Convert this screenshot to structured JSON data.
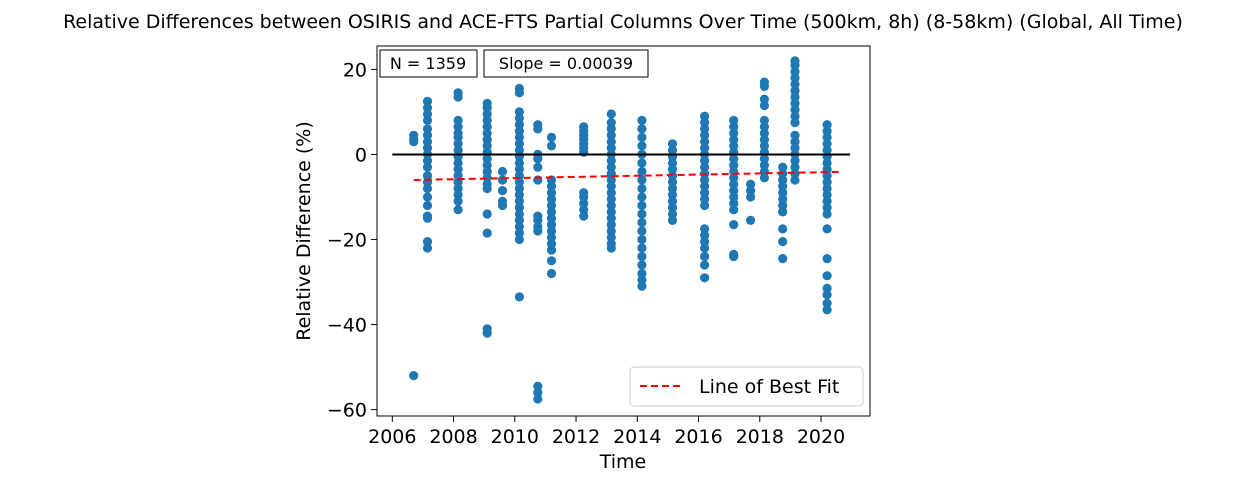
{
  "chart_data": {
    "type": "scatter",
    "title": "Relative Differences between OSIRIS and ACE-FTS Partial Columns Over Time (500km, 8h) (8-58km) (Global, All Time)",
    "xlabel": "Time",
    "ylabel": "Relative Difference (%)",
    "xlim": [
      2005.5,
      2021.6
    ],
    "ylim": [
      -61.5,
      25.5
    ],
    "xticks": [
      2006,
      2008,
      2010,
      2012,
      2014,
      2016,
      2018,
      2020
    ],
    "yticks": [
      20,
      0,
      -20,
      -40,
      -60
    ],
    "ytick_labels": [
      "20",
      "0",
      "−20",
      "−40",
      "−60"
    ],
    "annotations": {
      "n": "N = 1359",
      "slope": "Slope = 0.00039"
    },
    "legend": {
      "label": "Line of Best Fit",
      "placement": "lower-right"
    },
    "grid": false,
    "zero_line": {
      "y": 0,
      "x_start": 2006.0,
      "x_end": 2020.95,
      "color": "#000000"
    },
    "best_fit": {
      "slope": 0.00039,
      "x_start": 2006.7,
      "x_end": 2020.6,
      "y_start": -6.0,
      "y_end": -4.1,
      "color": "#ff0000"
    },
    "point_color": "#1f77b4",
    "clusters": [
      {
        "x": 2006.7,
        "values": [
          4.5,
          3.5,
          3.0,
          -52.0
        ]
      },
      {
        "x": 2007.15,
        "values": [
          12.5,
          11,
          9.5,
          8,
          6,
          4.5,
          3,
          1.5,
          0,
          -1.5,
          -3,
          -5,
          -6.5,
          -8,
          -10,
          -12,
          -14.5,
          -15,
          -20.5,
          -22
        ]
      },
      {
        "x": 2008.15,
        "values": [
          14.5,
          13.5,
          8,
          6.5,
          5,
          4,
          2.5,
          1,
          -0.5,
          -2,
          -3.5,
          -5,
          -6.5,
          -8,
          -9.5,
          -11,
          -13
        ]
      },
      {
        "x": 2009.1,
        "values": [
          12,
          11,
          9.5,
          8,
          6.5,
          5,
          3.5,
          2,
          0.5,
          -1,
          -2.5,
          -4,
          -5.5,
          -7,
          -8,
          -14,
          -18.5,
          -41,
          -42
        ]
      },
      {
        "x": 2009.6,
        "values": [
          -4,
          -6,
          -8.5,
          -11,
          -12
        ]
      },
      {
        "x": 2010.15,
        "values": [
          15.5,
          14.5,
          10,
          8.5,
          7,
          5.5,
          4,
          2.5,
          1,
          -0.5,
          -2,
          -3.5,
          -5,
          -6.5,
          -8,
          -9.5,
          -11,
          -12.5,
          -14,
          -15.5,
          -17,
          -18.5,
          -20,
          -33.5
        ]
      },
      {
        "x": 2010.75,
        "values": [
          7,
          6,
          0,
          -1,
          -3,
          -6,
          -14.5,
          -15.5,
          -17,
          -18,
          -54.5,
          -56,
          -57.5
        ]
      },
      {
        "x": 2011.2,
        "values": [
          4,
          2,
          -6,
          -7.5,
          -9,
          -10.5,
          -12,
          -13.5,
          -15,
          -16.5,
          -18,
          -19.5,
          -21,
          -22.5,
          -25,
          -28
        ]
      },
      {
        "x": 2012.25,
        "values": [
          6.5,
          5.5,
          4.5,
          3.5,
          2.5,
          1.5,
          0.5,
          -9,
          -10,
          -11.5,
          -13,
          -14.5
        ]
      },
      {
        "x": 2013.15,
        "values": [
          9.5,
          7.5,
          6,
          4.5,
          3,
          1.5,
          0,
          -1.5,
          -3,
          -4.5,
          -6,
          -7.5,
          -9,
          -10.5,
          -12,
          -13.5,
          -15,
          -16.5,
          -18,
          -19.5,
          -21,
          -22
        ]
      },
      {
        "x": 2014.15,
        "values": [
          8,
          6,
          4,
          2,
          0,
          -2,
          -4,
          -6,
          -8,
          -10,
          -12,
          -14,
          -16,
          -18,
          -20,
          -22,
          -24,
          -26,
          -28,
          -29.5,
          -31
        ]
      },
      {
        "x": 2015.15,
        "values": [
          2.5,
          1,
          -0.5,
          -2,
          -3.5,
          -5,
          -6.5,
          -8,
          -9.5,
          -11,
          -12.5,
          -14,
          -15.5
        ]
      },
      {
        "x": 2016.2,
        "values": [
          9,
          7.5,
          6,
          4.5,
          3,
          1.5,
          0,
          -1.5,
          -3,
          -4.5,
          -6,
          -7.5,
          -9,
          -10.5,
          -12,
          -17.5,
          -19,
          -20.5,
          -22,
          -24,
          -26,
          -29
        ]
      },
      {
        "x": 2017.15,
        "values": [
          8,
          6.5,
          5,
          3.5,
          2,
          0.5,
          -1,
          -2.5,
          -4,
          -5.5,
          -7,
          -8.5,
          -10,
          -11.5,
          -13,
          -16.5,
          -23.5,
          -24
        ]
      },
      {
        "x": 2017.7,
        "values": [
          -7,
          -8.5,
          -10,
          -15.5
        ]
      },
      {
        "x": 2018.15,
        "values": [
          17,
          16,
          13,
          11.5,
          8,
          6.5,
          5,
          3.5,
          2,
          0.5,
          -1,
          -2.5,
          -4,
          -5.5
        ]
      },
      {
        "x": 2018.75,
        "values": [
          -3,
          -4.5,
          -6,
          -7.5,
          -9,
          -10.5,
          -12,
          -13.5,
          -17.5,
          -20.5,
          -24.5
        ]
      },
      {
        "x": 2019.15,
        "values": [
          22,
          21,
          19.5,
          18,
          16.5,
          15,
          13.5,
          12,
          10.5,
          9,
          7.5,
          4.5,
          3,
          1.5,
          0,
          -1.5,
          -3,
          -4.5,
          -6
        ]
      },
      {
        "x": 2020.2,
        "values": [
          7,
          5.5,
          4,
          2.5,
          1,
          -0.5,
          -2,
          -3.5,
          -5,
          -6.5,
          -8,
          -9.5,
          -11,
          -12.5,
          -14,
          -17.5,
          -24.5,
          -28.5,
          -31.5,
          -33,
          -35,
          -36.5
        ]
      }
    ]
  }
}
